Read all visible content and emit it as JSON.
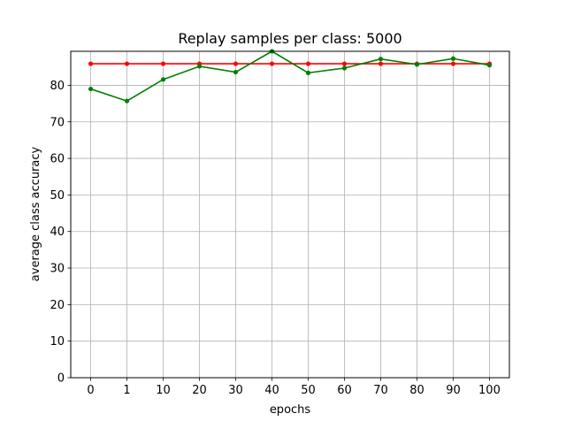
{
  "chart_data": {
    "type": "line",
    "title": "Replay samples per class: 5000",
    "xlabel": "epochs",
    "ylabel": "average class accuracy",
    "categories": [
      "0",
      "1",
      "10",
      "20",
      "30",
      "40",
      "50",
      "60",
      "70",
      "80",
      "90",
      "100"
    ],
    "y_ticks": [
      "0",
      "10",
      "20",
      "30",
      "40",
      "50",
      "60",
      "70",
      "80"
    ],
    "ylim": [
      0,
      89.3
    ],
    "grid": true,
    "series": [
      {
        "color": "#ff0000",
        "marker": "circle",
        "values": [
          85.9,
          85.9,
          85.9,
          85.9,
          85.9,
          85.9,
          85.9,
          85.9,
          85.9,
          85.9,
          85.9,
          85.9
        ]
      },
      {
        "color": "#008000",
        "marker": "circle",
        "values": [
          79.0,
          75.7,
          81.6,
          85.2,
          83.6,
          89.3,
          83.4,
          84.7,
          87.2,
          85.7,
          87.3,
          85.5
        ]
      }
    ]
  }
}
